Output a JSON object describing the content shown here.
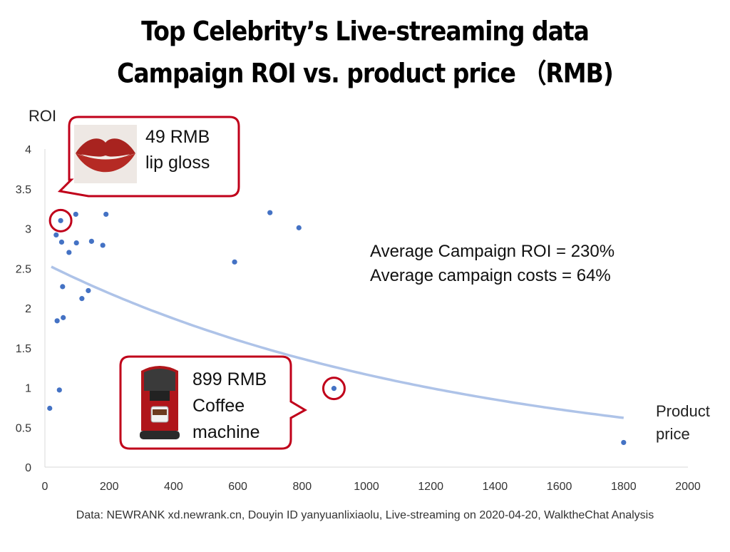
{
  "title_line1": "Top Celebrity’s Live-streaming data",
  "title_line2": "Campaign ROI vs. product price （RMB)",
  "source": "Data: NEWRANK xd.newrank.cn, Douyin ID yanyuanlixiaolu, Live-streaming on 2020-04-20, WalktheChat Analysis",
  "stats": [
    "Average Campaign ROI = 230%",
    "Average campaign costs = 64%"
  ],
  "callouts": {
    "lipgloss": {
      "line1": "49 RMB",
      "line2": "lip gloss",
      "highlight": {
        "x": 49,
        "y": 3.1
      },
      "image": "lips-icon"
    },
    "coffee": {
      "line1": "899 RMB",
      "line2": "Coffee",
      "line3": "machine",
      "highlight": {
        "x": 899,
        "y": 0.99
      },
      "image": "coffee-machine-icon"
    }
  },
  "colors": {
    "points": "#4472C4",
    "trend": "#AEC3E8",
    "callout": "#C0001A"
  },
  "chart_data": {
    "type": "scatter",
    "xlabel": "Product\nprice",
    "ylabel": "ROI",
    "xlim": [
      0,
      2000
    ],
    "ylim": [
      0,
      4
    ],
    "xticks": [
      "0",
      "200",
      "400",
      "600",
      "800",
      "1000",
      "1200",
      "1400",
      "1600",
      "1800",
      "2000"
    ],
    "yticks": [
      "0",
      "0.5",
      "1",
      "1.5",
      "2",
      "2.5",
      "3",
      "3.5",
      "4"
    ],
    "points": [
      {
        "x": 15,
        "y": 0.74
      },
      {
        "x": 35,
        "y": 2.92
      },
      {
        "x": 38,
        "y": 1.84
      },
      {
        "x": 45,
        "y": 0.97
      },
      {
        "x": 49,
        "y": 3.1
      },
      {
        "x": 52,
        "y": 2.83
      },
      {
        "x": 55,
        "y": 2.27
      },
      {
        "x": 57,
        "y": 1.88
      },
      {
        "x": 75,
        "y": 2.7
      },
      {
        "x": 96,
        "y": 3.18
      },
      {
        "x": 98,
        "y": 2.82
      },
      {
        "x": 115,
        "y": 2.12
      },
      {
        "x": 135,
        "y": 2.22
      },
      {
        "x": 145,
        "y": 2.84
      },
      {
        "x": 180,
        "y": 2.79
      },
      {
        "x": 190,
        "y": 3.18
      },
      {
        "x": 590,
        "y": 2.58
      },
      {
        "x": 700,
        "y": 3.2
      },
      {
        "x": 790,
        "y": 3.01
      },
      {
        "x": 899,
        "y": 0.99
      },
      {
        "x": 1800,
        "y": 0.31
      }
    ],
    "trendline": {
      "type": "exponential",
      "from": 20,
      "to": 1800,
      "y_start": 2.52,
      "y_end": 0.62
    },
    "grid": false,
    "legend": "none"
  }
}
